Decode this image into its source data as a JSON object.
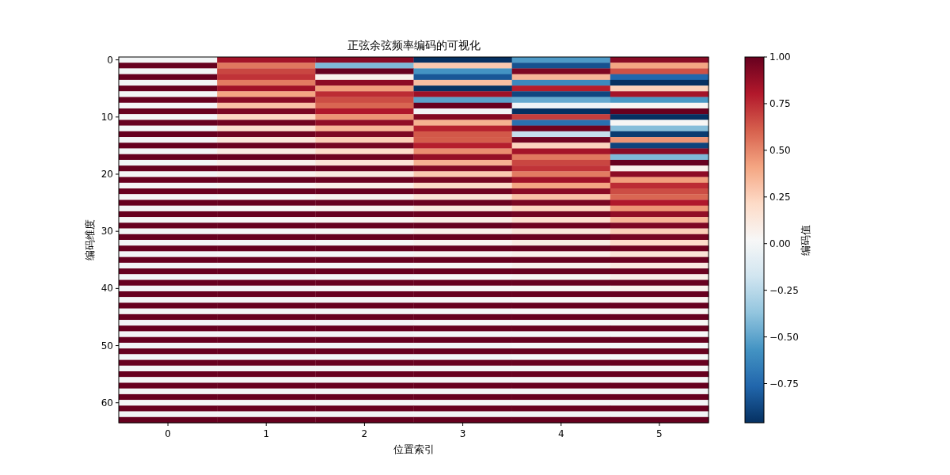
{
  "chart_data": {
    "type": "heatmap",
    "title": "正弦余弦频率编码的可视化",
    "xlabel": "位置索引",
    "ylabel": "编码维度",
    "clabel": "编码值",
    "categories": [
      "0",
      "1",
      "2",
      "3",
      "4",
      "5"
    ],
    "y_categories": [
      "0",
      null,
      null,
      null,
      null,
      null,
      null,
      null,
      null,
      null,
      "10",
      null,
      null,
      null,
      null,
      null,
      null,
      null,
      null,
      null,
      "20",
      null,
      null,
      null,
      null,
      null,
      null,
      null,
      null,
      null,
      "30",
      null,
      null,
      null,
      null,
      null,
      null,
      null,
      null,
      null,
      "40",
      null,
      null,
      null,
      null,
      null,
      null,
      null,
      null,
      null,
      "50",
      null,
      null,
      null,
      null,
      null,
      null,
      null,
      null,
      null,
      "60",
      null,
      null,
      null
    ],
    "clim": [
      -0.96,
      1.0
    ],
    "cticks": [
      {
        "value": -0.75,
        "label": "−0.75"
      },
      {
        "value": -0.5,
        "label": "−0.50"
      },
      {
        "value": -0.25,
        "label": "−0.25"
      },
      {
        "value": 0,
        "label": "0.00"
      },
      {
        "value": 0.25,
        "label": "0.25"
      },
      {
        "value": 0.5,
        "label": "0.50"
      },
      {
        "value": 0.75,
        "label": "0.75"
      },
      {
        "value": 1.0,
        "label": "1.00"
      }
    ],
    "cells": [
      [
        0,
        0.84,
        0.91,
        -0.96,
        -0.54,
        0.91
      ],
      [
        1,
        0.54,
        -0.42,
        0.28,
        -0.84,
        0.41
      ],
      [
        0,
        0.68,
        1.0,
        -0.57,
        0.94,
        0.65
      ],
      [
        1,
        0.73,
        0.07,
        -0.82,
        0.35,
        -0.76
      ],
      [
        0,
        0.53,
        0.9,
        0.32,
        -0.61,
        -0.97
      ],
      [
        1,
        0.85,
        0.43,
        -0.95,
        0.79,
        0.25
      ],
      [
        0,
        0.41,
        0.75,
        0.86,
        -0.88,
        0.84
      ],
      [
        1,
        0.91,
        0.66,
        -0.51,
        -0.48,
        -0.55
      ],
      [
        0,
        0.31,
        0.59,
        1.0,
        -0.02,
        0.04
      ],
      [
        1,
        0.95,
        0.81,
        -0.01,
        -1.0,
        1.0
      ],
      [
        0,
        0.23,
        0.46,
        0.93,
        0.7,
        -1.0
      ],
      [
        1,
        0.97,
        0.89,
        0.37,
        -0.72,
        0.03
      ],
      [
        0,
        0.18,
        0.35,
        0.78,
        0.98,
        -0.4
      ],
      [
        1,
        0.98,
        0.94,
        0.63,
        -0.21,
        -0.92
      ],
      [
        0,
        0.13,
        0.26,
        0.62,
        0.97,
        0.46
      ],
      [
        1,
        0.99,
        0.96,
        0.79,
        0.24,
        -0.89
      ],
      [
        0,
        0.1,
        0.2,
        0.48,
        0.84,
        0.91
      ],
      [
        1,
        1.0,
        0.98,
        0.88,
        0.54,
        -0.42
      ],
      [
        0,
        0.07,
        0.15,
        0.37,
        0.68,
        1.0
      ],
      [
        1,
        1.0,
        0.99,
        0.93,
        0.73,
        0.07
      ],
      [
        0,
        0.06,
        0.11,
        0.28,
        0.53,
        0.9
      ],
      [
        1,
        1.0,
        0.99,
        0.96,
        0.85,
        0.43
      ],
      [
        0,
        0.04,
        0.08,
        0.21,
        0.41,
        0.75
      ],
      [
        1,
        1.0,
        1.0,
        0.98,
        0.91,
        0.66
      ],
      [
        0,
        0.03,
        0.06,
        0.16,
        0.31,
        0.59
      ],
      [
        1,
        1.0,
        1.0,
        0.99,
        0.95,
        0.81
      ],
      [
        0,
        0.02,
        0.05,
        0.12,
        0.23,
        0.46
      ],
      [
        1,
        1.0,
        1.0,
        0.99,
        0.97,
        0.89
      ],
      [
        0,
        0.02,
        0.04,
        0.09,
        0.18,
        0.35
      ],
      [
        1,
        1.0,
        1.0,
        1.0,
        0.98,
        0.94
      ],
      [
        0,
        0.01,
        0.03,
        0.07,
        0.13,
        0.26
      ],
      [
        1,
        1.0,
        1.0,
        1.0,
        0.99,
        0.96
      ],
      [
        0,
        0.01,
        0.02,
        0.05,
        0.1,
        0.2
      ],
      [
        1,
        1,
        1,
        1,
        1,
        0.98
      ],
      [
        0,
        0.01,
        0.01,
        0.04,
        0.07,
        0.15
      ],
      [
        1,
        1,
        1,
        1,
        1,
        0.99
      ],
      [
        0,
        0.01,
        0.01,
        0.03,
        0.06,
        0.11
      ],
      [
        1,
        1,
        1,
        1,
        1,
        0.99
      ],
      [
        0,
        0,
        0.01,
        0.02,
        0.04,
        0.08
      ],
      [
        1,
        1,
        1,
        1,
        1,
        1
      ],
      [
        0,
        0,
        0.01,
        0.02,
        0.03,
        0.06
      ],
      [
        1,
        1,
        1,
        1,
        1,
        1
      ],
      [
        0,
        0,
        0,
        0.01,
        0.02,
        0.05
      ],
      [
        1,
        1,
        1,
        1,
        1,
        1
      ],
      [
        0,
        0,
        0,
        0.01,
        0.02,
        0.04
      ],
      [
        1,
        1,
        1,
        1,
        1,
        1
      ],
      [
        0,
        0,
        0,
        0.01,
        0.01,
        0.03
      ],
      [
        1,
        1,
        1,
        1,
        1,
        1
      ],
      [
        0,
        0,
        0,
        0.01,
        0.01,
        0.02
      ],
      [
        1,
        1,
        1,
        1,
        1,
        1
      ],
      [
        0,
        0,
        0,
        0,
        0.01,
        0.01
      ],
      [
        1,
        1,
        1,
        1,
        1,
        1
      ],
      [
        0,
        0,
        0,
        0,
        0.01,
        0.01
      ],
      [
        1,
        1,
        1,
        1,
        1,
        1
      ],
      [
        0,
        0,
        0,
        0,
        0,
        0.01
      ],
      [
        1,
        1,
        1,
        1,
        1,
        1
      ],
      [
        0,
        0,
        0,
        0,
        0,
        0.01
      ],
      [
        1,
        1,
        1,
        1,
        1,
        1
      ],
      [
        0,
        0,
        0,
        0,
        0,
        0
      ],
      [
        1,
        1,
        1,
        1,
        1,
        1
      ],
      [
        0,
        0,
        0,
        0,
        0,
        0
      ],
      [
        1,
        1,
        1,
        1,
        1,
        1
      ],
      [
        0,
        0,
        0,
        0,
        0,
        0
      ],
      [
        1,
        1,
        1,
        1,
        1,
        1
      ]
    ]
  }
}
